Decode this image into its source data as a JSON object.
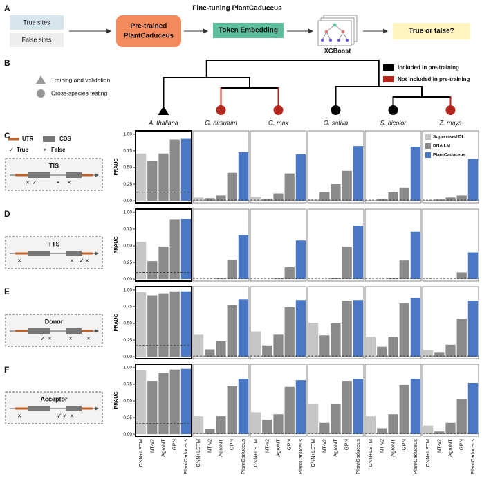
{
  "panel_labels": [
    "A",
    "B",
    "C",
    "D",
    "E",
    "F"
  ],
  "workflow": {
    "title": "Fine-tuning PlantCaduceus",
    "inputs": [
      "True sites",
      "False sites"
    ],
    "model": [
      "Pre-trained",
      "PlantCaduceus"
    ],
    "embedding": "Token Embedding",
    "classifier": "XGBoost",
    "output": "True or false?"
  },
  "tree": {
    "species": [
      {
        "name": "A. thaliana",
        "included": true
      },
      {
        "name": "G. hirsutum",
        "included": false
      },
      {
        "name": "G. max",
        "included": false
      },
      {
        "name": "O. sativa",
        "included": true
      },
      {
        "name": "S. bicolor",
        "included": true
      },
      {
        "name": "Z. mays",
        "included": false
      }
    ],
    "shape_legend": [
      "Training and validation",
      "Cross-species testing"
    ],
    "color_legend": [
      {
        "name": "Included in pre-training",
        "color": "#000000"
      },
      {
        "name": "Not included in pre-training",
        "color": "#b3261e"
      }
    ]
  },
  "gene_legend": {
    "utr": "UTR",
    "cds": "CDS",
    "true": "True",
    "false": "False"
  },
  "tasks": [
    "TIS",
    "TTS",
    "Donor",
    "Acceptor"
  ],
  "bar_legend": [
    {
      "name": "Supervised DL",
      "color": "#c6c6c6"
    },
    {
      "name": "DNA LM",
      "color": "#8a8a8a"
    },
    {
      "name": "PlantCaduceus",
      "color": "#4a78c4"
    }
  ],
  "chart_data": [
    {
      "type": "bar",
      "values": [
        0.71,
        0.6,
        0.71,
        0.92,
        0.93
      ],
      "baseline": 0.13,
      "colors": [
        "#c6c6c6",
        "#8a8a8a",
        "#8a8a8a",
        "#8a8a8a",
        "#4a78c4"
      ],
      "ylim": [
        -0.03,
        1.05
      ],
      "ylabel": "PRAUC",
      "yticks": [
        {
          "value": 0,
          "label": "0.00"
        },
        {
          "value": 0.25,
          "label": "0.25"
        },
        {
          "value": 0.5,
          "label": "0.50"
        },
        {
          "value": 0.75,
          "label": "0.75"
        },
        {
          "value": 1,
          "label": "1.00"
        }
      ]
    },
    {
      "type": "bar",
      "values": [
        0.05,
        0.04,
        0.08,
        0.42,
        0.73
      ],
      "baseline": 0.01,
      "colors": [
        "#c6c6c6",
        "#8a8a8a",
        "#8a8a8a",
        "#8a8a8a",
        "#4a78c4"
      ],
      "ylim": [
        -0.03,
        1.05
      ]
    },
    {
      "type": "bar",
      "values": [
        0.06,
        0.03,
        0.11,
        0.41,
        0.7
      ],
      "baseline": 0.01,
      "colors": [
        "#c6c6c6",
        "#8a8a8a",
        "#8a8a8a",
        "#8a8a8a",
        "#4a78c4"
      ],
      "ylim": [
        -0.03,
        1.05
      ]
    },
    {
      "type": "bar",
      "values": [
        0.02,
        0.13,
        0.25,
        0.45,
        0.82
      ],
      "baseline": 0.01,
      "colors": [
        "#c6c6c6",
        "#8a8a8a",
        "#8a8a8a",
        "#8a8a8a",
        "#4a78c4"
      ],
      "ylim": [
        -0.03,
        1.05
      ]
    },
    {
      "type": "bar",
      "values": [
        0.01,
        0.03,
        0.13,
        0.2,
        0.81
      ],
      "baseline": 0.01,
      "colors": [
        "#c6c6c6",
        "#8a8a8a",
        "#8a8a8a",
        "#8a8a8a",
        "#4a78c4"
      ],
      "ylim": [
        -0.03,
        1.05
      ]
    },
    {
      "type": "bar",
      "values": [
        0.01,
        0.02,
        0.05,
        0.08,
        0.63
      ],
      "baseline": 0.01,
      "colors": [
        "#c6c6c6",
        "#8a8a8a",
        "#8a8a8a",
        "#8a8a8a",
        "#4a78c4"
      ],
      "ylim": [
        -0.03,
        1.05
      ]
    },
    {
      "type": "bar",
      "values": [
        0.56,
        0.27,
        0.49,
        0.89,
        0.9
      ],
      "baseline": 0.1,
      "colors": [
        "#c6c6c6",
        "#8a8a8a",
        "#8a8a8a",
        "#8a8a8a",
        "#4a78c4"
      ],
      "ylim": [
        -0.03,
        1.05
      ],
      "ylabel": "PRAUC",
      "yticks": [
        {
          "value": 0,
          "label": "0.00"
        },
        {
          "value": 0.25,
          "label": "0.25"
        },
        {
          "value": 0.5,
          "label": "0.50"
        },
        {
          "value": 0.75,
          "label": "0.75"
        },
        {
          "value": 1,
          "label": "1.00"
        }
      ]
    },
    {
      "type": "bar",
      "values": [
        0,
        0,
        0.01,
        0.29,
        0.66
      ],
      "baseline": 0.01,
      "colors": [
        "#c6c6c6",
        "#8a8a8a",
        "#8a8a8a",
        "#8a8a8a",
        "#4a78c4"
      ],
      "ylim": [
        -0.03,
        1.05
      ]
    },
    {
      "type": "bar",
      "values": [
        0,
        0,
        0.01,
        0.18,
        0.58
      ],
      "baseline": 0.01,
      "colors": [
        "#c6c6c6",
        "#8a8a8a",
        "#8a8a8a",
        "#8a8a8a",
        "#4a78c4"
      ],
      "ylim": [
        -0.03,
        1.05
      ]
    },
    {
      "type": "bar",
      "values": [
        0,
        0,
        0.02,
        0.49,
        0.8
      ],
      "baseline": 0.01,
      "colors": [
        "#c6c6c6",
        "#8a8a8a",
        "#8a8a8a",
        "#8a8a8a",
        "#4a78c4"
      ],
      "ylim": [
        -0.03,
        1.05
      ]
    },
    {
      "type": "bar",
      "values": [
        0,
        0,
        0.01,
        0.28,
        0.71
      ],
      "baseline": 0.01,
      "colors": [
        "#c6c6c6",
        "#8a8a8a",
        "#8a8a8a",
        "#8a8a8a",
        "#4a78c4"
      ],
      "ylim": [
        -0.03,
        1.05
      ]
    },
    {
      "type": "bar",
      "values": [
        0,
        0,
        0,
        0.1,
        0.4
      ],
      "baseline": 0.01,
      "colors": [
        "#c6c6c6",
        "#8a8a8a",
        "#8a8a8a",
        "#8a8a8a",
        "#4a78c4"
      ],
      "ylim": [
        -0.03,
        1.05
      ]
    },
    {
      "type": "bar",
      "values": [
        0.97,
        0.92,
        0.95,
        0.98,
        0.98
      ],
      "baseline": 0.17,
      "colors": [
        "#c6c6c6",
        "#8a8a8a",
        "#8a8a8a",
        "#8a8a8a",
        "#4a78c4"
      ],
      "ylim": [
        -0.03,
        1.05
      ],
      "ylabel": "PRAUC",
      "yticks": [
        {
          "value": 0,
          "label": "0.00"
        },
        {
          "value": 0.25,
          "label": "0.25"
        },
        {
          "value": 0.5,
          "label": "0.50"
        },
        {
          "value": 0.75,
          "label": "0.75"
        },
        {
          "value": 1,
          "label": "1.00"
        }
      ]
    },
    {
      "type": "bar",
      "values": [
        0.33,
        0.11,
        0.23,
        0.77,
        0.86
      ],
      "baseline": 0.01,
      "colors": [
        "#c6c6c6",
        "#8a8a8a",
        "#8a8a8a",
        "#8a8a8a",
        "#4a78c4"
      ],
      "ylim": [
        -0.03,
        1.05
      ]
    },
    {
      "type": "bar",
      "values": [
        0.38,
        0.17,
        0.33,
        0.74,
        0.85
      ],
      "baseline": 0.01,
      "colors": [
        "#c6c6c6",
        "#8a8a8a",
        "#8a8a8a",
        "#8a8a8a",
        "#4a78c4"
      ],
      "ylim": [
        -0.03,
        1.05
      ]
    },
    {
      "type": "bar",
      "values": [
        0.51,
        0.32,
        0.5,
        0.84,
        0.85
      ],
      "baseline": 0.01,
      "colors": [
        "#c6c6c6",
        "#8a8a8a",
        "#8a8a8a",
        "#8a8a8a",
        "#4a78c4"
      ],
      "ylim": [
        -0.03,
        1.05
      ]
    },
    {
      "type": "bar",
      "values": [
        0.3,
        0.15,
        0.3,
        0.8,
        0.88
      ],
      "baseline": 0.01,
      "colors": [
        "#c6c6c6",
        "#8a8a8a",
        "#8a8a8a",
        "#8a8a8a",
        "#4a78c4"
      ],
      "ylim": [
        -0.03,
        1.05
      ]
    },
    {
      "type": "bar",
      "values": [
        0.1,
        0.06,
        0.18,
        0.57,
        0.84
      ],
      "baseline": 0.01,
      "colors": [
        "#c6c6c6",
        "#8a8a8a",
        "#8a8a8a",
        "#8a8a8a",
        "#4a78c4"
      ],
      "ylim": [
        -0.03,
        1.05
      ]
    },
    {
      "type": "bar",
      "values": [
        0.96,
        0.8,
        0.92,
        0.97,
        0.98
      ],
      "baseline": 0.16,
      "colors": [
        "#c6c6c6",
        "#8a8a8a",
        "#8a8a8a",
        "#8a8a8a",
        "#4a78c4"
      ],
      "ylim": [
        -0.03,
        1.05
      ],
      "ylabel": "PRAUC",
      "yticks": [
        {
          "value": 0,
          "label": "0.00"
        },
        {
          "value": 0.25,
          "label": "0.25"
        },
        {
          "value": 0.5,
          "label": "0.50"
        },
        {
          "value": 0.75,
          "label": "0.75"
        },
        {
          "value": 1,
          "label": "1.00"
        }
      ],
      "categories": [
        "CNN+LSTM",
        "NT-v2",
        "AgroNT",
        "GPN",
        "PlantCaduceus"
      ]
    },
    {
      "type": "bar",
      "values": [
        0.27,
        0.08,
        0.27,
        0.72,
        0.83
      ],
      "baseline": 0.01,
      "colors": [
        "#c6c6c6",
        "#8a8a8a",
        "#8a8a8a",
        "#8a8a8a",
        "#4a78c4"
      ],
      "ylim": [
        -0.03,
        1.05
      ],
      "categories": [
        "CNN+LSTM",
        "NT-v2",
        "AgroNT",
        "GPN",
        "PlantCaduceus"
      ]
    },
    {
      "type": "bar",
      "values": [
        0.33,
        0.22,
        0.3,
        0.71,
        0.81
      ],
      "baseline": 0.01,
      "colors": [
        "#c6c6c6",
        "#8a8a8a",
        "#8a8a8a",
        "#8a8a8a",
        "#4a78c4"
      ],
      "ylim": [
        -0.03,
        1.05
      ],
      "categories": [
        "CNN+LSTM",
        "NT-v2",
        "AgroNT",
        "GPN",
        "PlantCaduceus"
      ]
    },
    {
      "type": "bar",
      "values": [
        0.45,
        0.17,
        0.45,
        0.8,
        0.83
      ],
      "baseline": 0.01,
      "colors": [
        "#c6c6c6",
        "#8a8a8a",
        "#8a8a8a",
        "#8a8a8a",
        "#4a78c4"
      ],
      "ylim": [
        -0.03,
        1.05
      ],
      "categories": [
        "CNN+LSTM",
        "NT-v2",
        "AgroNT",
        "GPN",
        "PlantCaduceus"
      ]
    },
    {
      "type": "bar",
      "values": [
        0.27,
        0.09,
        0.3,
        0.74,
        0.83
      ],
      "baseline": 0.01,
      "colors": [
        "#c6c6c6",
        "#8a8a8a",
        "#8a8a8a",
        "#8a8a8a",
        "#4a78c4"
      ],
      "ylim": [
        -0.03,
        1.05
      ],
      "categories": [
        "CNN+LSTM",
        "NT-v2",
        "AgroNT",
        "GPN",
        "PlantCaduceus"
      ]
    },
    {
      "type": "bar",
      "values": [
        0.13,
        0.04,
        0.17,
        0.53,
        0.77
      ],
      "baseline": 0.01,
      "colors": [
        "#c6c6c6",
        "#8a8a8a",
        "#8a8a8a",
        "#8a8a8a",
        "#4a78c4"
      ],
      "ylim": [
        -0.03,
        1.05
      ],
      "categories": [
        "CNN+LSTM",
        "NT-v2",
        "AgroNT",
        "GPN",
        "PlantCaduceus"
      ]
    }
  ]
}
